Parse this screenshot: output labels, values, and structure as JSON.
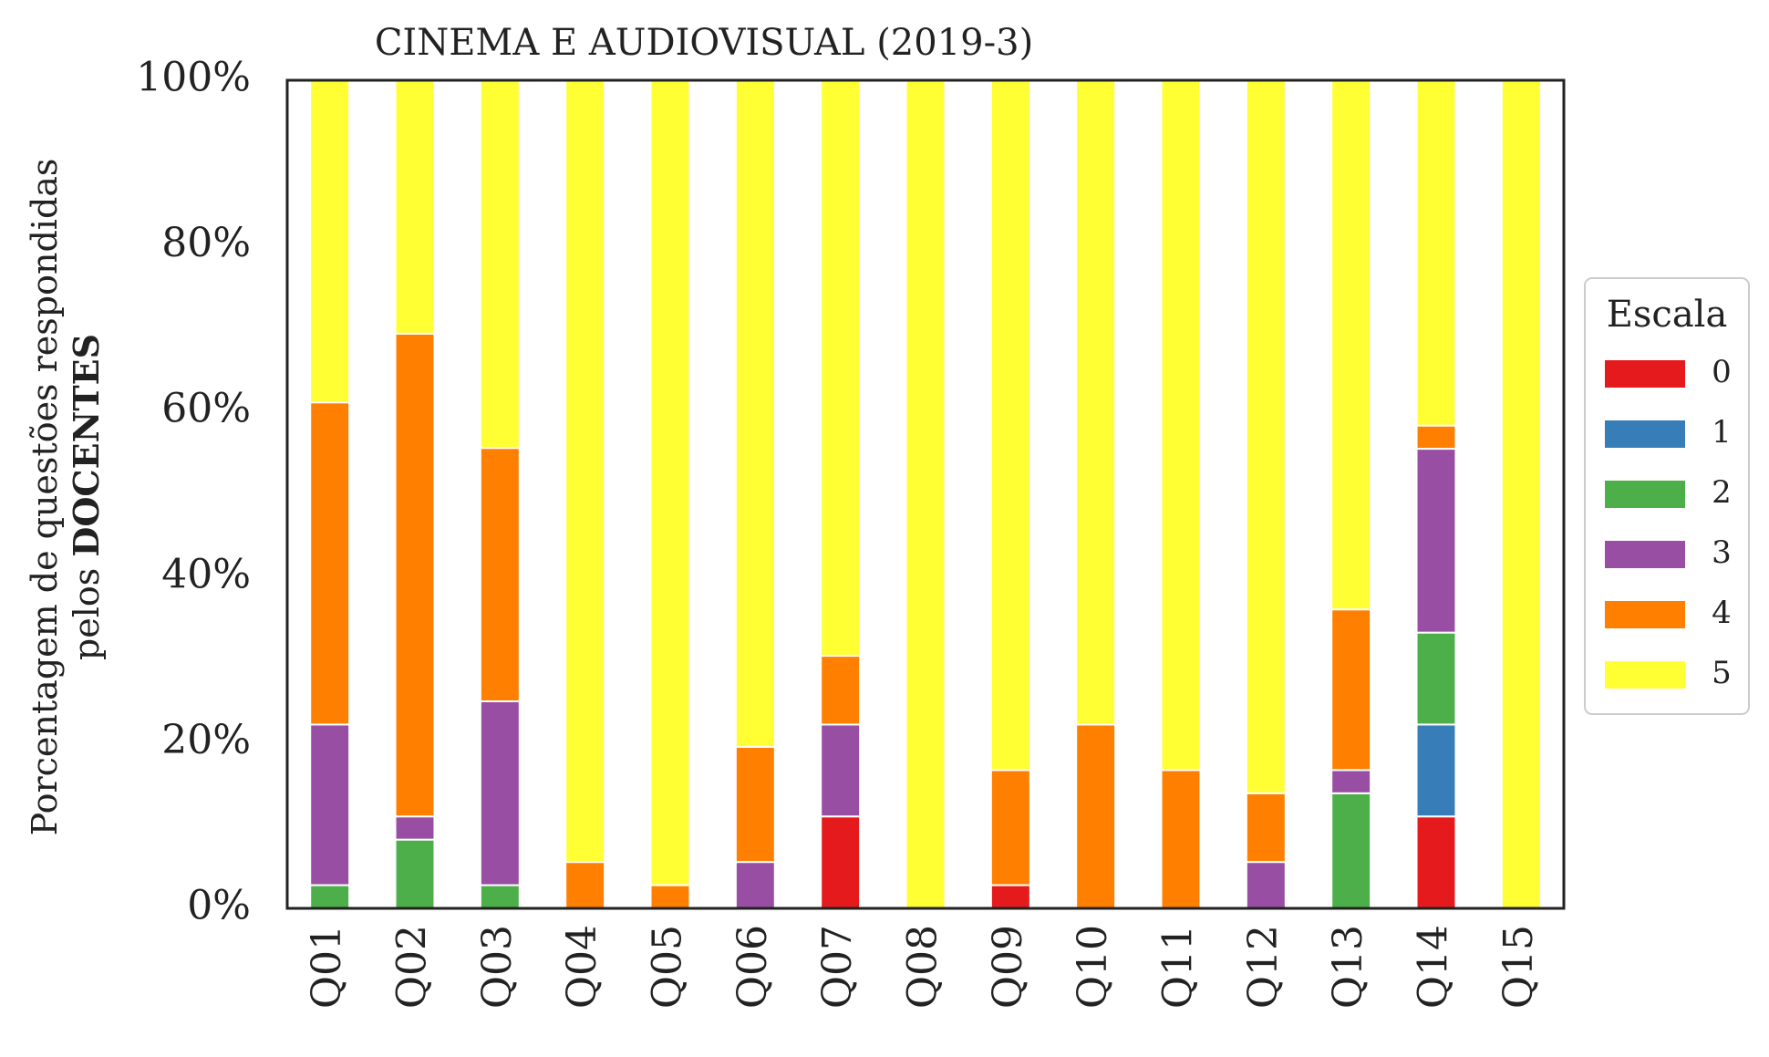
{
  "chart_data": {
    "type": "bar",
    "stacked": true,
    "normalized": true,
    "title": "CINEMA E AUDIOVISUAL (2019-3)",
    "ylabel_line1": "Porcentagem de questões respondidas",
    "ylabel_line2_prefix": "pelos ",
    "ylabel_line2_bold": "DOCENTES",
    "ylim": [
      0,
      100
    ],
    "yticks": [
      0,
      20,
      40,
      60,
      80,
      100
    ],
    "ytick_labels": [
      "0%",
      "20%",
      "40%",
      "60%",
      "80%",
      "100%"
    ],
    "grid": false,
    "legend": {
      "title": "Escala",
      "placement": "right"
    },
    "categories": [
      "Q01",
      "Q02",
      "Q03",
      "Q04",
      "Q05",
      "Q06",
      "Q07",
      "Q08",
      "Q09",
      "Q10",
      "Q11",
      "Q12",
      "Q13",
      "Q14",
      "Q15"
    ],
    "series": [
      {
        "name": "0",
        "color": "#e41a1c",
        "values": [
          0,
          0,
          0,
          0,
          0,
          0,
          11.1,
          0,
          2.8,
          0,
          0,
          0,
          0,
          11.1,
          0
        ]
      },
      {
        "name": "1",
        "color": "#377eb8",
        "values": [
          0,
          0,
          0,
          0,
          0,
          0,
          0,
          0,
          0,
          0,
          0,
          0,
          0,
          11.1,
          0
        ]
      },
      {
        "name": "2",
        "color": "#4daf4a",
        "values": [
          2.8,
          8.3,
          2.8,
          0,
          0,
          0,
          0,
          0,
          0,
          0,
          0,
          0,
          13.9,
          11.1,
          0
        ]
      },
      {
        "name": "3",
        "color": "#984ea3",
        "values": [
          19.4,
          2.8,
          22.2,
          0,
          0,
          5.6,
          11.1,
          0,
          0,
          0,
          0,
          5.6,
          2.8,
          22.2,
          0
        ]
      },
      {
        "name": "4",
        "color": "#ff7f00",
        "values": [
          38.9,
          58.3,
          30.6,
          5.6,
          2.8,
          13.9,
          8.3,
          0,
          13.9,
          22.2,
          16.7,
          8.3,
          19.4,
          2.8,
          0
        ]
      },
      {
        "name": "5",
        "color": "#ffff33",
        "values": [
          38.9,
          30.6,
          44.4,
          94.4,
          97.2,
          80.5,
          69.5,
          100,
          83.3,
          77.8,
          83.3,
          86.1,
          63.9,
          41.7,
          100
        ]
      }
    ]
  }
}
